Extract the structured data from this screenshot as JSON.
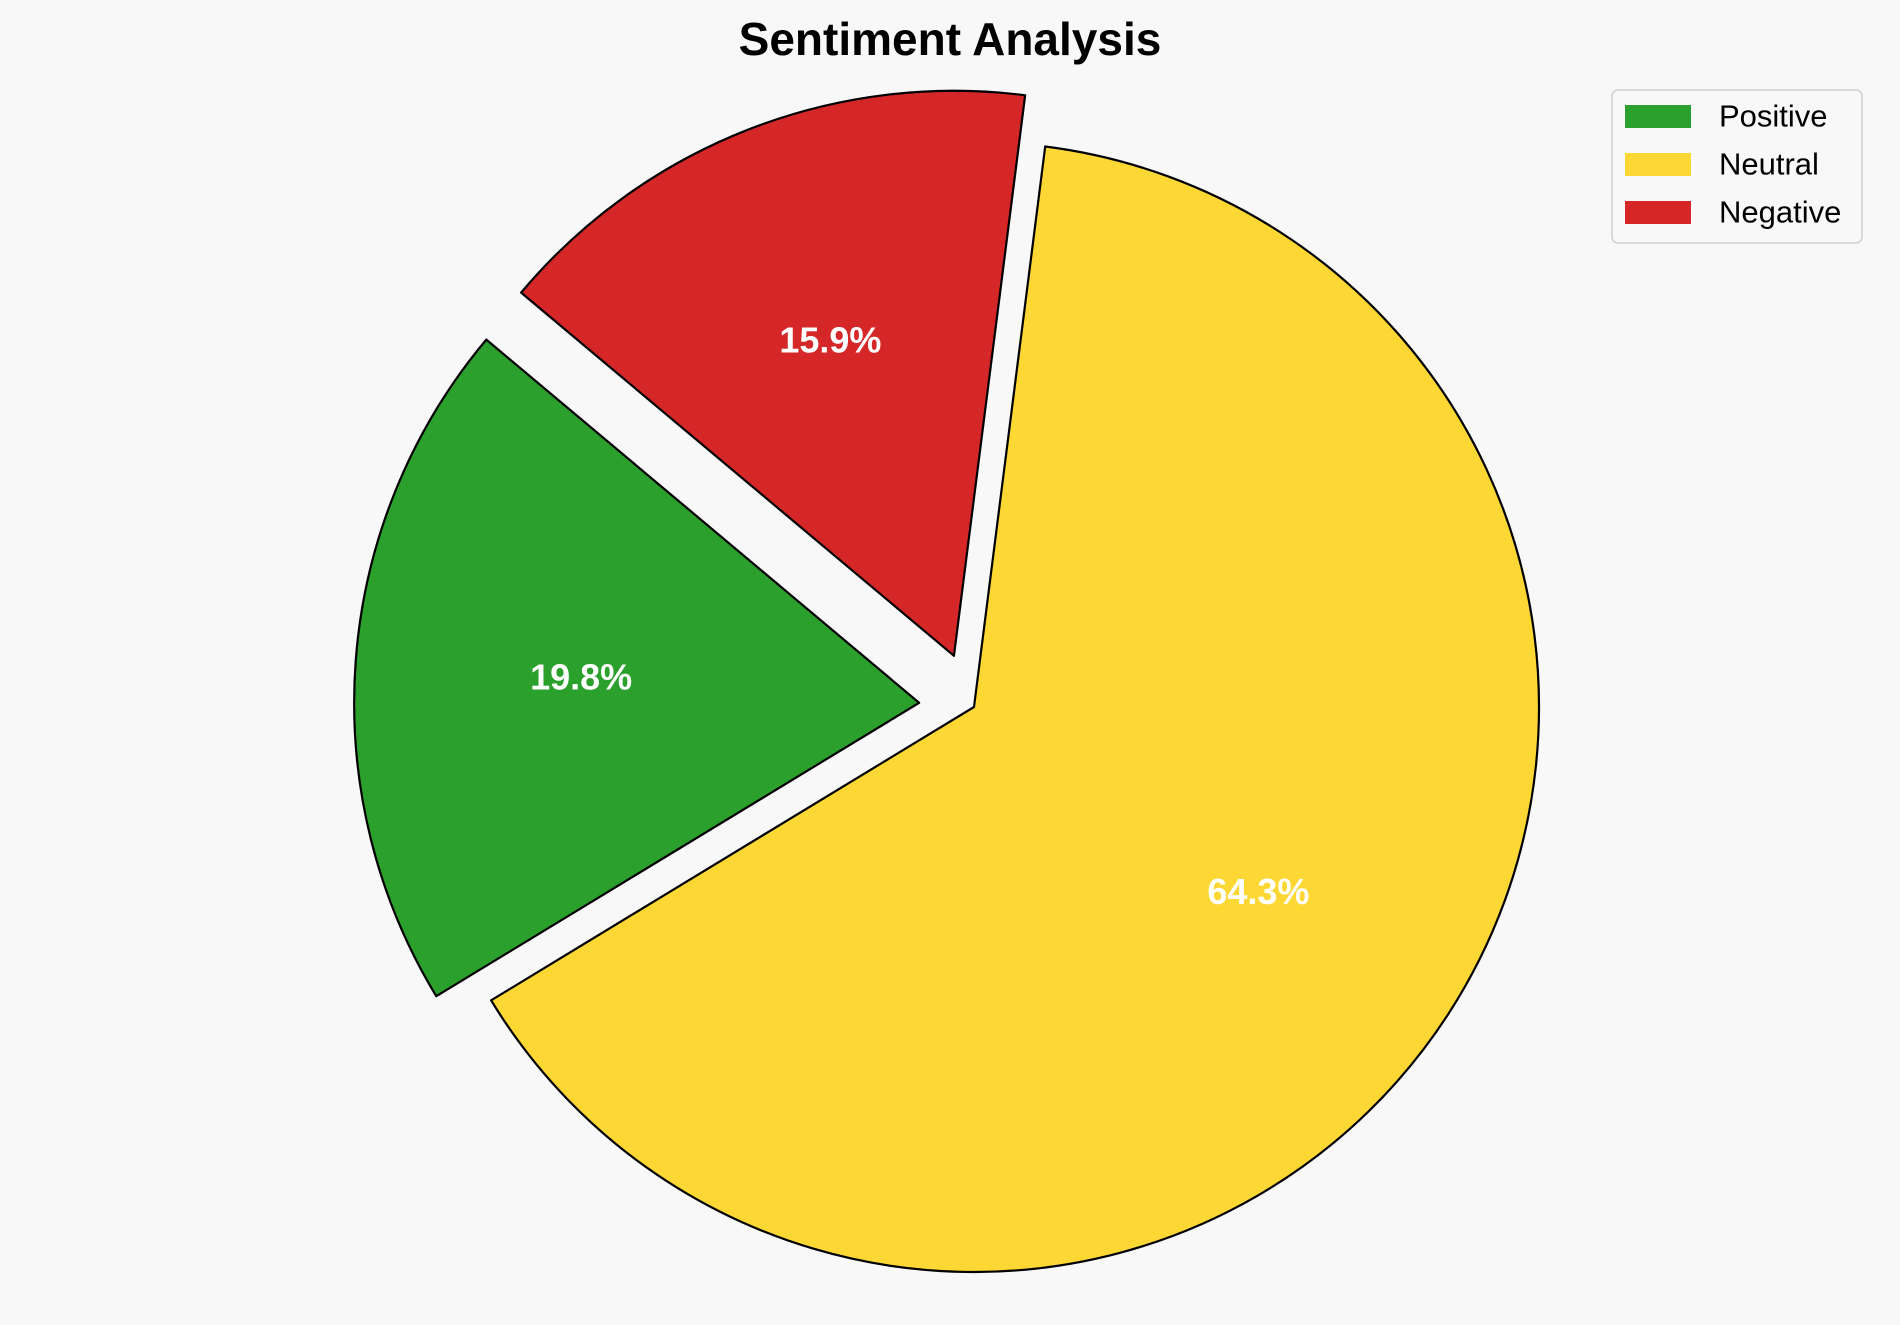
{
  "chart_data": {
    "type": "pie",
    "title": "Sentiment Analysis",
    "categories": [
      "Positive",
      "Neutral",
      "Negative"
    ],
    "values": [
      19.8,
      64.3,
      15.9
    ],
    "labels": [
      "19.8%",
      "64.3%",
      "15.9%"
    ],
    "colors": [
      "#2ca02c",
      "#fdd835",
      "#d62728"
    ],
    "start_angle_deg": 140,
    "exploded": [
      true,
      false,
      true
    ],
    "legend": {
      "placement": "top-right",
      "entries": [
        "Positive",
        "Neutral",
        "Negative"
      ]
    },
    "edge_color": "#000000"
  }
}
